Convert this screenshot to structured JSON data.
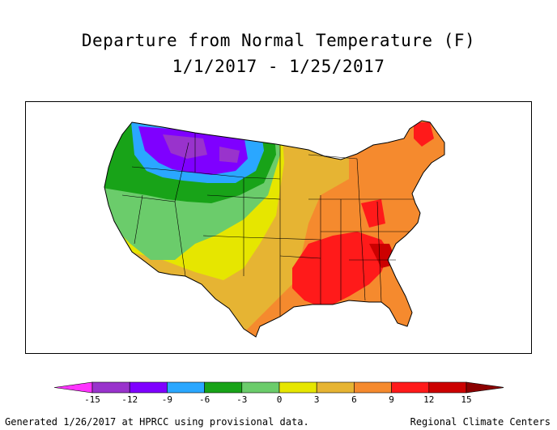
{
  "title": "Departure from Normal Temperature (F)",
  "subtitle": "1/1/2017 - 1/25/2017",
  "legend": {
    "ticks": [
      "-15",
      "-12",
      "-9",
      "-6",
      "-3",
      "0",
      "3",
      "6",
      "9",
      "12",
      "15"
    ],
    "bins": [
      {
        "range": "< -15",
        "color": "#ff33ff"
      },
      {
        "range": "-15 to -12",
        "color": "#9933cc"
      },
      {
        "range": "-12 to -9",
        "color": "#7f00ff"
      },
      {
        "range": "-9 to -6",
        "color": "#2aa7ff"
      },
      {
        "range": "-6 to -3",
        "color": "#18a318"
      },
      {
        "range": "-3 to 0",
        "color": "#6bcc6b"
      },
      {
        "range": "0 to 3",
        "color": "#e6e600"
      },
      {
        "range": "3 to 6",
        "color": "#e6b433"
      },
      {
        "range": "6 to 9",
        "color": "#f58a2e"
      },
      {
        "range": "9 to 12",
        "color": "#ff1a1a"
      },
      {
        "range": "12 to 15",
        "color": "#cc0000"
      },
      {
        "range": "> 15",
        "color": "#8b0000"
      }
    ]
  },
  "map": {
    "region": "Contiguous United States",
    "pattern": [
      {
        "area": "Northern Rockies / northern Great Plains",
        "departure": "-15 to -6",
        "color": "#7f00ff"
      },
      {
        "area": "Pacific Northwest / northern Great Basin",
        "departure": "-6 to -3",
        "color": "#18a318"
      },
      {
        "area": "California / central Rockies",
        "departure": "-3 to 0",
        "color": "#6bcc6b"
      },
      {
        "area": "Southwest / central Plains",
        "departure": "0 to 3",
        "color": "#e6e600"
      },
      {
        "area": "Texas / Midwest",
        "departure": "3 to 6",
        "color": "#e6b433"
      },
      {
        "area": "East / Great Lakes / New England",
        "departure": "6 to 9",
        "color": "#f58a2e"
      },
      {
        "area": "Southeast / Gulf Coast",
        "departure": "9 to 12",
        "color": "#ff1a1a"
      }
    ]
  },
  "footer": {
    "left": "Generated 1/26/2017 at HPRCC using provisional data.",
    "right": "Regional Climate Centers"
  }
}
